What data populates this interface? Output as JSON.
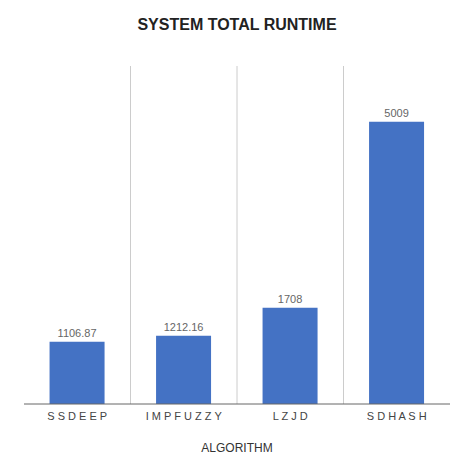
{
  "chart_data": {
    "type": "bar",
    "title": "SYSTEM TOTAL RUNTIME",
    "xlabel": "ALGORITHM",
    "categories": [
      "S S D E E P",
      "I M P F U Z Z Y",
      "L Z J D",
      "S D H A S H"
    ],
    "values": [
      1106.87,
      1212.16,
      1708,
      5009
    ],
    "color": "#4472C4",
    "ylim": [
      0,
      6000
    ],
    "grid": true,
    "data_labels": true,
    "tick_labels": "x"
  }
}
